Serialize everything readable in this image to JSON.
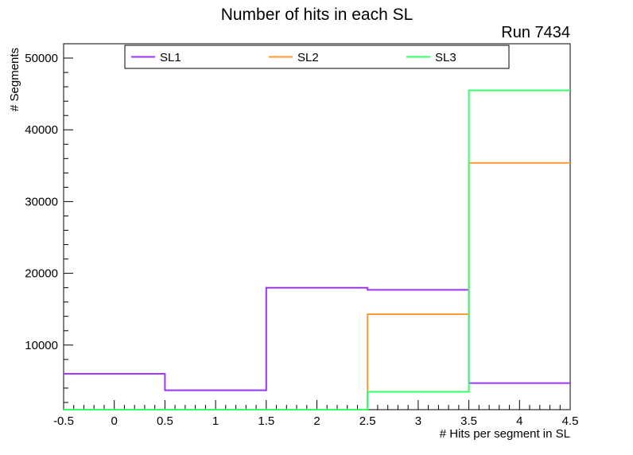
{
  "page": {
    "title": "Number of hits in each SL",
    "run_label": "Run 7434"
  },
  "chart_data": {
    "type": "line",
    "render_style": "step-histogram",
    "title": "Number of hits in each SL",
    "annotation": "Run 7434",
    "xlabel": "# Hits per segment in SL",
    "ylabel": "# Segments",
    "grid": false,
    "bin_edges": [
      -0.5,
      0.5,
      1.5,
      2.5,
      3.5,
      4.5
    ],
    "series": [
      {
        "name": "SL1",
        "color": "#9933ff",
        "values": [
          6000,
          3700,
          18000,
          17700,
          4700
        ]
      },
      {
        "name": "SL2",
        "color": "#ff9933",
        "values": [
          0,
          0,
          0,
          14300,
          35400
        ]
      },
      {
        "name": "SL3",
        "color": "#33ff66",
        "values": [
          0,
          0,
          0,
          3500,
          45500
        ]
      }
    ],
    "x_axis": {
      "title": "# Hits per segment in SL",
      "min": -0.5,
      "max": 4.5,
      "minor_step": 0.1,
      "major_ticks": [
        {
          "v": -0.5,
          "label": "-0.5"
        },
        {
          "v": 0,
          "label": "0"
        },
        {
          "v": 0.5,
          "label": "0.5"
        },
        {
          "v": 1,
          "label": "1"
        },
        {
          "v": 1.5,
          "label": "1.5"
        },
        {
          "v": 2,
          "label": "2"
        },
        {
          "v": 2.5,
          "label": "2.5"
        },
        {
          "v": 3,
          "label": "3"
        },
        {
          "v": 3.5,
          "label": "3.5"
        },
        {
          "v": 4,
          "label": "4"
        },
        {
          "v": 4.5,
          "label": "4.5"
        }
      ]
    },
    "y_axis": {
      "title": "# Segments",
      "min": 1000,
      "max": 52000,
      "minor_step": 2000,
      "major_ticks": [
        {
          "v": 10000,
          "label": "10000"
        },
        {
          "v": 20000,
          "label": "20000"
        },
        {
          "v": 30000,
          "label": "30000"
        },
        {
          "v": 40000,
          "label": "40000"
        },
        {
          "v": 50000,
          "label": "50000"
        }
      ]
    },
    "legend": {
      "position": "top",
      "entries": [
        "SL1",
        "SL2",
        "SL3"
      ]
    }
  }
}
